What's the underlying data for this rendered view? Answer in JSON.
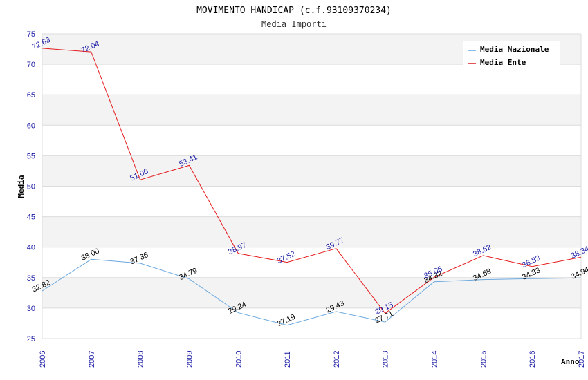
{
  "chart_data": {
    "type": "line",
    "title": "MOVIMENTO HANDICAP (c.f.93109370234)",
    "subtitle": "Media Importi",
    "xlabel": "Anno",
    "ylabel": "Media",
    "ylim": [
      25,
      75
    ],
    "y_ticks": [
      "25",
      "30",
      "35",
      "40",
      "45",
      "50",
      "55",
      "60",
      "65",
      "70",
      "75"
    ],
    "categories": [
      "2006",
      "2007",
      "2008",
      "2009",
      "2010",
      "2011",
      "2012",
      "2013",
      "2014",
      "2015",
      "2016",
      "2017"
    ],
    "grid": true,
    "legend_position": "top-right",
    "series": [
      {
        "name": "Media Nazionale",
        "color": "#6aa8e0",
        "label_color": "#000000",
        "values": [
          32.82,
          38.0,
          37.36,
          34.79,
          29.24,
          27.19,
          29.43,
          27.71,
          34.32,
          34.68,
          34.83,
          34.94
        ],
        "labels": [
          "32.82",
          "38.00",
          "37.36",
          "34.79",
          "29.24",
          "27.19",
          "29.43",
          "27.71",
          "34.32",
          "34.68",
          "34.83",
          "34.94"
        ]
      },
      {
        "name": "Media Ente",
        "color": "#e41a1c",
        "label_color": "#1a1aa6",
        "values": [
          72.63,
          72.04,
          51.06,
          53.41,
          38.97,
          37.52,
          39.77,
          29.15,
          35.06,
          38.62,
          36.83,
          38.34
        ],
        "labels": [
          "72.63",
          "72.04",
          "51.06",
          "53.41",
          "38.97",
          "37.52",
          "39.77",
          "29.15",
          "35.06",
          "38.62",
          "36.83",
          "38.34"
        ]
      }
    ]
  }
}
